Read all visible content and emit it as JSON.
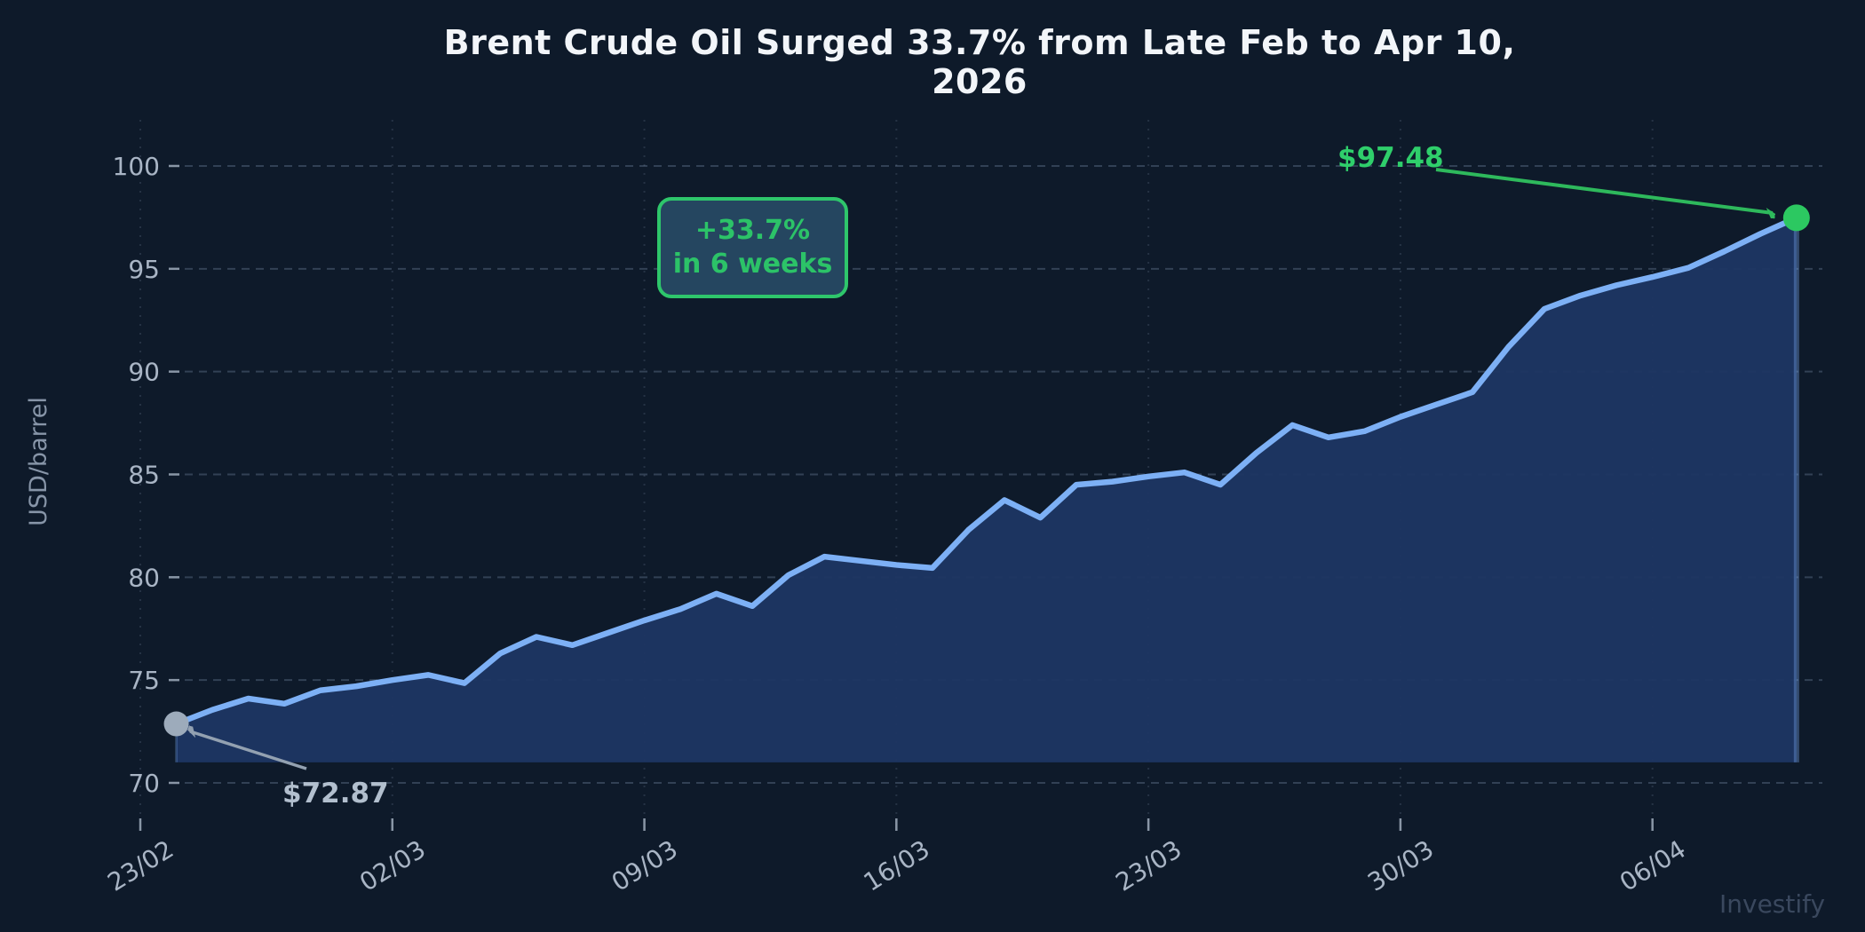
{
  "title": "Brent Crude Oil Surged 33.7% from Late Feb to Apr 10, 2026",
  "watermark": "Investify",
  "annotations": {
    "start_label": "$72.87",
    "end_label": "$97.48",
    "badge_line1": "+33.7%",
    "badge_line2": "in 6 weeks"
  },
  "colors": {
    "background": "#0e1a2a",
    "line": "#7db0f5",
    "area_fill": "#1d3663",
    "grid": "#8094b0",
    "tick_label": "#a9b5c5",
    "axis_title": "#8795a8",
    "green_accent": "#2ec66b",
    "green_text": "#2cc368",
    "gray_annotation": "#93a1b1",
    "start_dot": "#9dabbb",
    "end_dot": "#2cc861",
    "badge_fill": "#254660",
    "title_text": "#f2f5f9",
    "watermark_text": "#3a485e"
  },
  "chart_data": {
    "type": "area",
    "title": "Brent Crude Oil Surged 33.7% from Late Feb to Apr 10, 2026",
    "xlabel": "",
    "ylabel": "USD/barrel",
    "grid": "dashed horizontal weekly-vertical",
    "legend": "none",
    "ylim": [
      68,
      102.5
    ],
    "y_ticks": [
      70,
      75,
      80,
      85,
      90,
      95,
      100
    ],
    "x_tick_labels": [
      "23/02",
      "02/03",
      "09/03",
      "16/03",
      "23/03",
      "30/03",
      "06/04"
    ],
    "x_tick_day_offsets": [
      0,
      7,
      14,
      21,
      28,
      35,
      42
    ],
    "area_baseline": 71,
    "dates": [
      "24/02",
      "25/02",
      "26/02",
      "27/02",
      "28/02",
      "01/03",
      "02/03",
      "03/03",
      "04/03",
      "05/03",
      "06/03",
      "07/03",
      "08/03",
      "09/03",
      "10/03",
      "11/03",
      "12/03",
      "13/03",
      "14/03",
      "15/03",
      "16/03",
      "17/03",
      "18/03",
      "19/03",
      "20/03",
      "21/03",
      "22/03",
      "23/03",
      "24/03",
      "25/03",
      "26/03",
      "27/03",
      "28/03",
      "29/03",
      "30/03",
      "31/03",
      "01/04",
      "02/04",
      "03/04",
      "04/04",
      "05/04",
      "06/04",
      "07/04",
      "08/04",
      "09/04",
      "10/04"
    ],
    "values": [
      72.87,
      73.55,
      74.1,
      73.85,
      74.5,
      74.7,
      75.0,
      75.25,
      74.85,
      76.3,
      77.1,
      76.7,
      77.3,
      77.9,
      78.45,
      79.2,
      78.6,
      80.1,
      81.0,
      80.8,
      80.6,
      80.45,
      82.3,
      83.75,
      82.9,
      84.5,
      84.65,
      84.9,
      85.1,
      84.5,
      86.05,
      87.4,
      86.8,
      87.1,
      87.8,
      88.4,
      89.0,
      91.2,
      93.05,
      93.7,
      94.2,
      94.6,
      95.05,
      95.85,
      96.7,
      97.48
    ],
    "start_point": {
      "date": "24/02",
      "value": 72.87,
      "label": "$72.87"
    },
    "end_point": {
      "date": "10/04",
      "value": 97.48,
      "label": "$97.48"
    }
  }
}
